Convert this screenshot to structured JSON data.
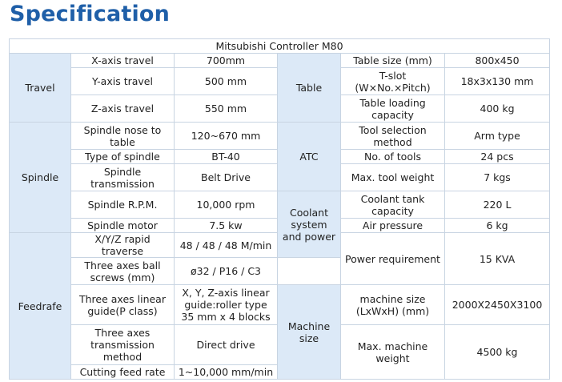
{
  "title": "Specification",
  "controller": "Mitsubishi Controller M80",
  "groups": {
    "travel": "Travel",
    "spindle": "Spindle",
    "feedrate": "Feedrafe",
    "table": "Table",
    "atc": "ATC",
    "coolant": "Coolant system and power",
    "machine_size": "Machine size"
  },
  "left_rows": [
    {
      "label": "X-axis travel",
      "value": "700mm"
    },
    {
      "label": "Y-axis travel",
      "value": "500 mm"
    },
    {
      "label": "Z-axis travel",
      "value": "550 mm"
    },
    {
      "label": "Spindle nose to table",
      "value": "120~670 mm"
    },
    {
      "label": "Type of spindle",
      "value": "BT-40"
    },
    {
      "label": "Spindle transmission",
      "value": "Belt Drive"
    },
    {
      "label": "Spindle R.P.M.",
      "value": "10,000 rpm"
    },
    {
      "label": "Spindle motor",
      "value": "7.5 kw"
    },
    {
      "label": "X/Y/Z rapid traverse",
      "value": "48 / 48 / 48 M/min"
    },
    {
      "label": "Three axes ball screws (mm)",
      "value": "ø32 / P16 / C3"
    },
    {
      "label": "Three axes linear guide(P class)",
      "value": "X, Y, Z-axis linear guide:roller type 35 mm x 4 blocks"
    },
    {
      "label": "Three axes transmission method",
      "value": "Direct drive"
    },
    {
      "label": "Cutting feed rate",
      "value": "1~10,000 mm/min"
    }
  ],
  "right_rows": [
    {
      "label": "Table size (mm)",
      "value": "800x450"
    },
    {
      "label": "T-slot (W×No.×Pitch)",
      "value": "18x3x130 mm"
    },
    {
      "label": "Table loading capacity",
      "value": "400 kg"
    },
    {
      "label": "Tool selection method",
      "value": "Arm type"
    },
    {
      "label": "No. of tools",
      "value": "24 pcs"
    },
    {
      "label": "Max. tool weight",
      "value": "7 kgs"
    },
    {
      "label": "Coolant tank capacity",
      "value": "220 L"
    },
    {
      "label": "Air pressure",
      "value": "6 kg"
    },
    {
      "label": "Power requirement",
      "value": "15 KVA"
    },
    {
      "label": "machine size (LxWxH) (mm)",
      "value": "2000X2450X3100"
    },
    {
      "label": "Max. machine weight",
      "value": "4500 kg"
    }
  ]
}
